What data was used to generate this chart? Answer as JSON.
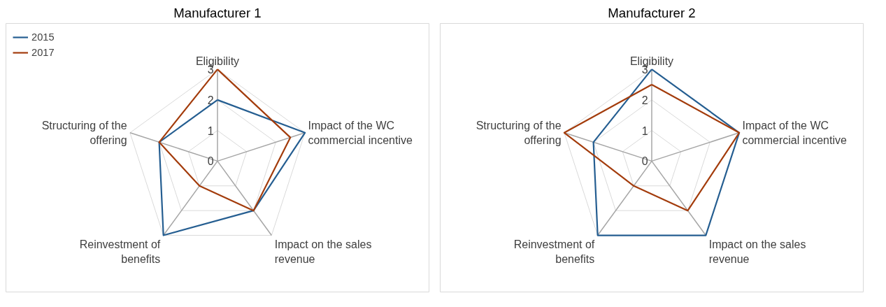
{
  "chart_data": [
    {
      "type": "radar",
      "title": "Manufacturer 1",
      "categories": [
        "Eligibility",
        "Impact of the WC commercial incentive",
        "Impact on the sales revenue",
        "Reinvestment of benefits",
        "Structuring of the offering"
      ],
      "ylim": [
        0,
        3
      ],
      "yticks": [
        0,
        1,
        2,
        3
      ],
      "legend": "top left",
      "series": [
        {
          "name": "2015",
          "color": "#255e91",
          "values": [
            2,
            3,
            2,
            3,
            2
          ]
        },
        {
          "name": "2017",
          "color": "#a33c0c",
          "values": [
            3,
            2.5,
            2,
            1,
            2
          ]
        }
      ]
    },
    {
      "type": "radar",
      "title": "Manufacturer 2",
      "categories": [
        "Eligibility",
        "Impact of the WC commercial incentive",
        "Impact on the sales revenue",
        "Reinvestment of benefits",
        "Structuring of the offering"
      ],
      "ylim": [
        0,
        3
      ],
      "yticks": [
        0,
        1,
        2,
        3
      ],
      "series": [
        {
          "color": "#255e91",
          "values": [
            3,
            3,
            3,
            3,
            2
          ]
        },
        {
          "color": "#a33c0c",
          "values": [
            2.5,
            3,
            2,
            1,
            3
          ]
        }
      ]
    }
  ]
}
